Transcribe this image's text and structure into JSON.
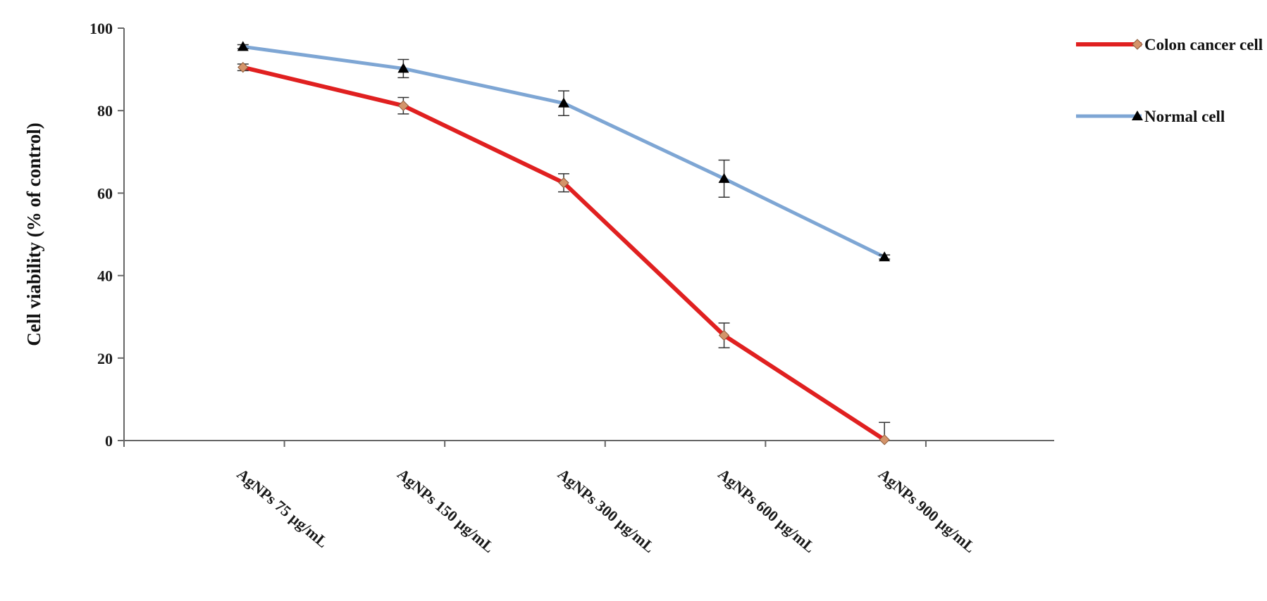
{
  "chart_data": {
    "type": "line",
    "title": "",
    "xlabel": "",
    "ylabel": "Cell viability  (% of control)",
    "ylim": [
      0,
      100
    ],
    "yticks": [
      "0",
      "20",
      "40",
      "60",
      "80",
      "100"
    ],
    "categories": [
      "AgNPs 75 µg/mL",
      "AgNPs 150 µg/mL",
      "AgNPs 300 µg/mL",
      "AgNPs 600 µg/mL",
      "AgNPs 900 µg/mL"
    ],
    "grid": false,
    "legend_position": "top-right",
    "series": [
      {
        "name": "Colon cancer cell",
        "values": [
          90.5,
          81.2,
          62.5,
          25.5,
          0.2
        ],
        "errors": [
          0.8,
          2.0,
          2.2,
          3.0,
          4.2
        ],
        "line_color": "#e02020",
        "marker": "diamond",
        "marker_color": "#d4946a"
      },
      {
        "name": "Normal cell",
        "values": [
          95.5,
          90.2,
          81.8,
          63.5,
          44.5
        ],
        "errors": [
          0.5,
          2.2,
          3.0,
          4.5,
          0.5
        ],
        "line_color": "#7ea6d4",
        "marker": "triangle",
        "marker_color": "#000000"
      }
    ]
  }
}
